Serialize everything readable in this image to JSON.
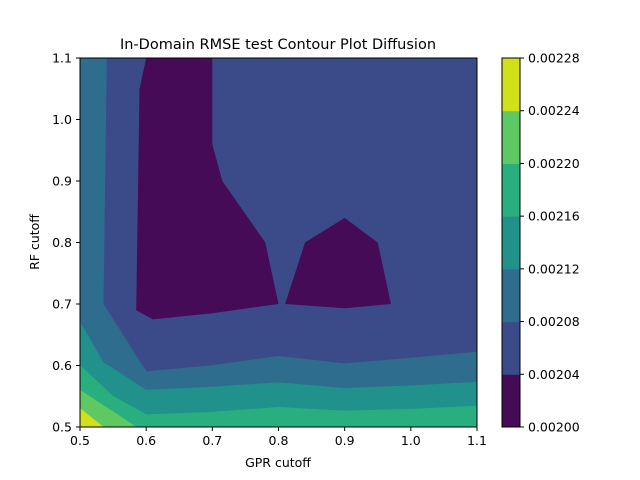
{
  "chart_data": {
    "type": "contour",
    "title": "In-Domain RMSE test Contour Plot Diffusion",
    "xlabel": "GPR cutoff",
    "ylabel": "RF cutoff",
    "xlim": [
      0.5,
      1.1
    ],
    "ylim": [
      0.5,
      1.1
    ],
    "xticks": [
      "0.5",
      "0.6",
      "0.7",
      "0.8",
      "0.9",
      "1.0",
      "1.1"
    ],
    "yticks": [
      "0.5",
      "0.6",
      "0.7",
      "0.8",
      "0.9",
      "1.0",
      "1.1"
    ],
    "colorbar": {
      "levels": [
        0.002,
        0.00204,
        0.00208,
        0.00212,
        0.00216,
        0.0022,
        0.00224,
        0.00228
      ],
      "tick_labels": [
        "0.00200",
        "0.00204",
        "0.00208",
        "0.00212",
        "0.00216",
        "0.00220",
        "0.00224",
        "0.00228"
      ],
      "colors": [
        "#450b57",
        "#3b4b89",
        "#2f6d8e",
        "#21918c",
        "#29af7f",
        "#5ec962",
        "#d0e11c"
      ]
    },
    "regions": [
      {
        "level_index": 0,
        "points": [
          [
            0.6,
            1.1
          ],
          [
            0.7,
            1.1
          ],
          [
            0.7,
            0.96
          ],
          [
            0.715,
            0.9
          ],
          [
            0.78,
            0.8
          ],
          [
            0.8,
            0.7
          ],
          [
            0.7,
            0.685
          ],
          [
            0.61,
            0.675
          ],
          [
            0.585,
            0.69
          ],
          [
            0.59,
            1.05
          ]
        ]
      },
      {
        "level_index": 0,
        "points": [
          [
            0.84,
            0.8
          ],
          [
            0.9,
            0.84
          ],
          [
            0.95,
            0.8
          ],
          [
            0.97,
            0.7
          ],
          [
            0.9,
            0.693
          ],
          [
            0.81,
            0.7
          ]
        ]
      }
    ],
    "bands": [
      {
        "level_index": 2,
        "boundary": [
          [
            0.5,
            1.1
          ],
          [
            0.54,
            1.1
          ],
          [
            0.535,
            0.7
          ],
          [
            0.6,
            0.59
          ],
          [
            0.7,
            0.6
          ],
          [
            0.8,
            0.615
          ],
          [
            0.9,
            0.603
          ],
          [
            1.0,
            0.612
          ],
          [
            1.1,
            0.622
          ]
        ]
      },
      {
        "level_index": 3,
        "boundary": [
          [
            0.5,
            0.67
          ],
          [
            0.535,
            0.605
          ],
          [
            0.6,
            0.56
          ],
          [
            0.7,
            0.565
          ],
          [
            0.8,
            0.572
          ],
          [
            0.9,
            0.563
          ],
          [
            1.0,
            0.567
          ],
          [
            1.1,
            0.573
          ]
        ]
      },
      {
        "level_index": 4,
        "boundary": [
          [
            0.5,
            0.6
          ],
          [
            0.55,
            0.55
          ],
          [
            0.6,
            0.52
          ],
          [
            0.7,
            0.524
          ],
          [
            0.8,
            0.532
          ],
          [
            0.9,
            0.526
          ],
          [
            1.0,
            0.529
          ],
          [
            1.1,
            0.534
          ]
        ]
      },
      {
        "level_index": 5,
        "boundary": [
          [
            0.5,
            0.56
          ],
          [
            0.585,
            0.5
          ]
        ]
      },
      {
        "level_index": 6,
        "boundary": [
          [
            0.5,
            0.53
          ],
          [
            0.535,
            0.5
          ]
        ]
      }
    ],
    "grid": false,
    "legend": "colorbar-right"
  }
}
